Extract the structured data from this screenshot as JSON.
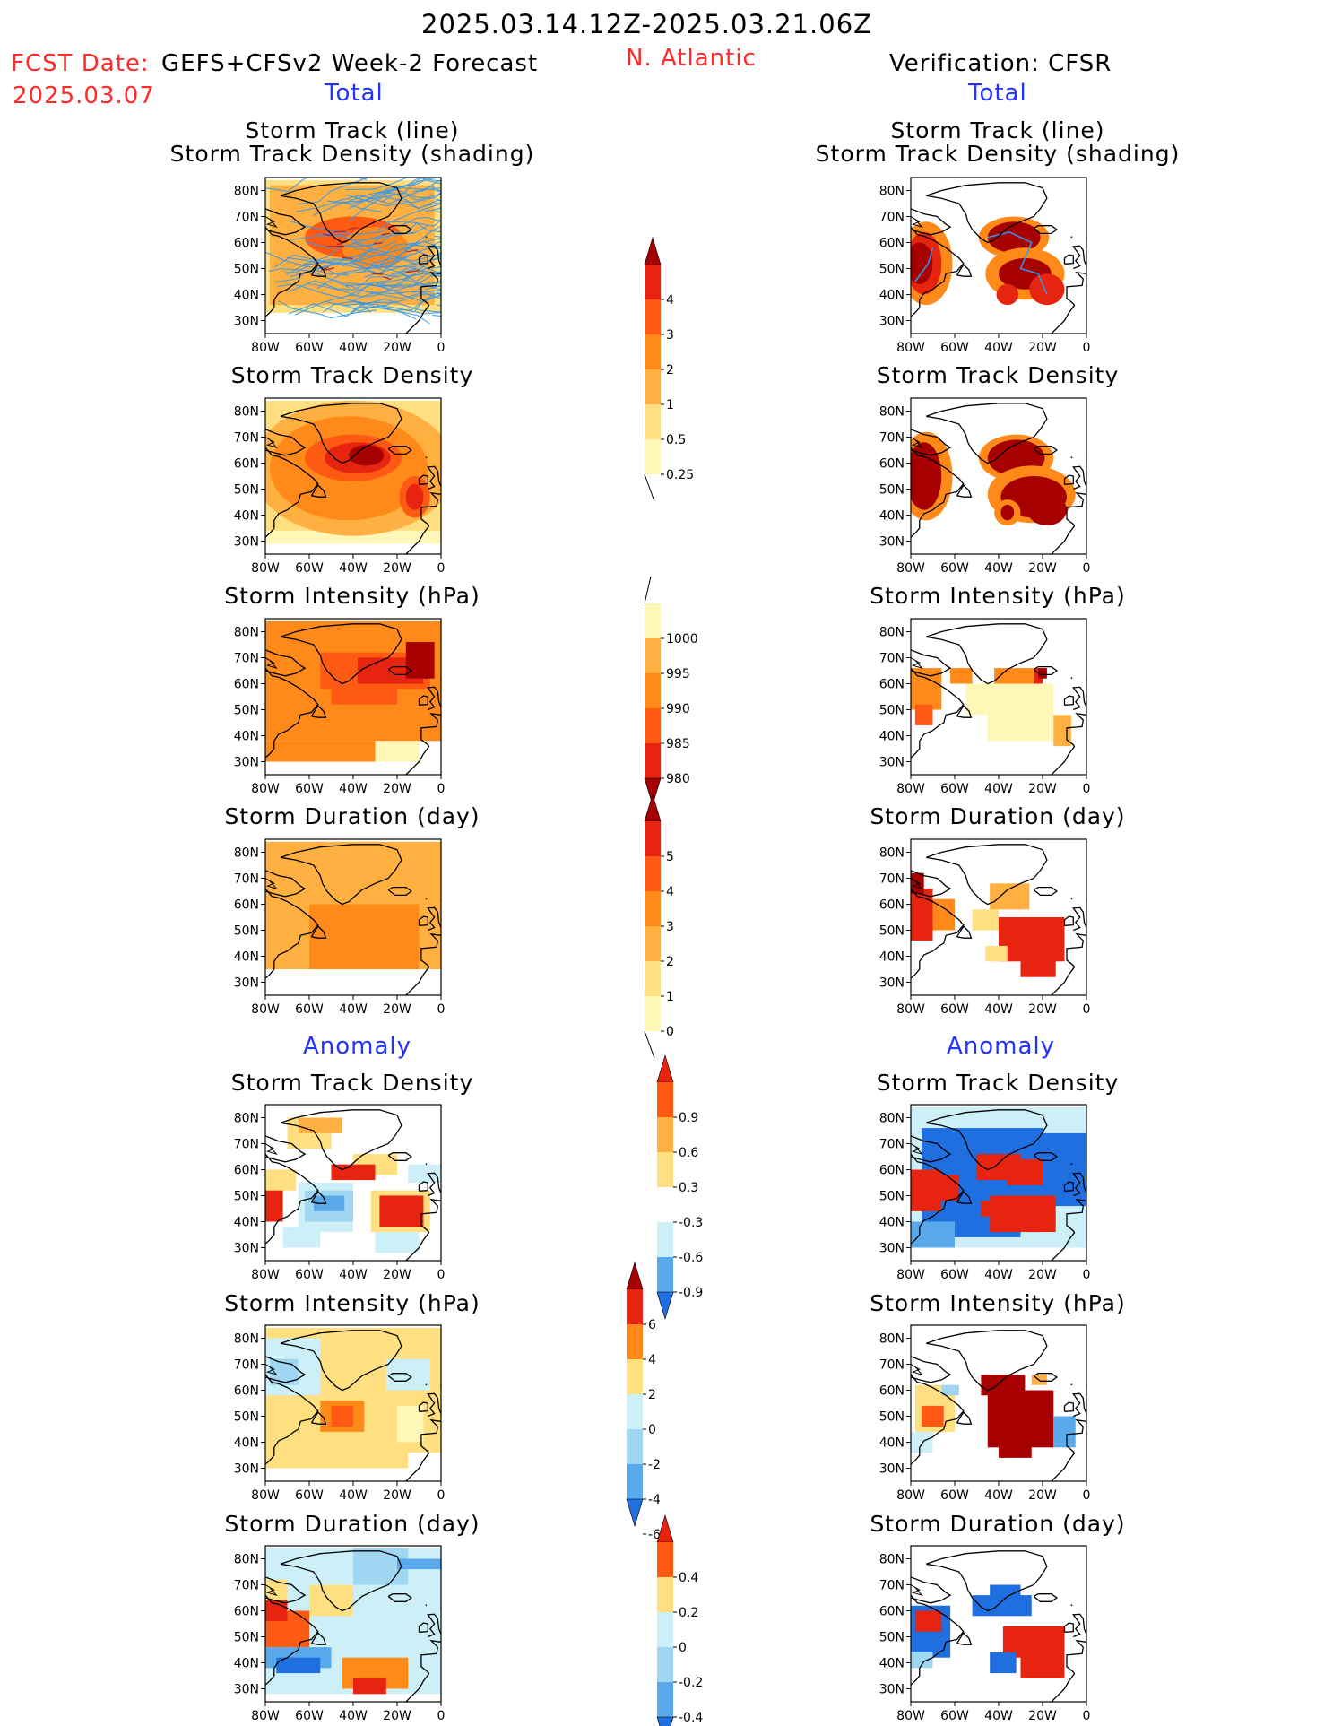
{
  "header": {
    "date_range": "2025.03.14.12Z-2025.03.21.06Z",
    "fcst_label": "FCST Date:",
    "fcst_model": "GEFS+CFSv2 Week-2 Forecast",
    "fcst_date": "2025.03.07",
    "region": "N. Atlantic",
    "verification": "Verification: CFSR",
    "left_section": "Total",
    "right_section": "Total",
    "left_anomaly": "Anomaly",
    "right_anomaly": "Anomaly"
  },
  "panel_titles": {
    "track_line": "Storm Track (line)",
    "track_shading": "Storm Track Density (shading)",
    "density": "Storm Track Density",
    "intensity": "Storm Intensity (hPa)",
    "duration": "Storm Duration (day)"
  },
  "axes": {
    "lat_labels": [
      "80N",
      "70N",
      "60N",
      "50N",
      "40N",
      "30N"
    ],
    "lon_labels": [
      "80W",
      "60W",
      "40W",
      "20W",
      "0"
    ]
  },
  "colorbars": {
    "total_density": [
      "4",
      "3",
      "2",
      "1",
      "0.5",
      "0.25"
    ],
    "total_intensity": [
      "1000",
      "995",
      "990",
      "985",
      "980"
    ],
    "total_duration": [
      "5",
      "4",
      "3",
      "2",
      "1",
      "0"
    ],
    "anom_density": [
      "0.9",
      "0.6",
      "0.3",
      "-0.3",
      "-0.6",
      "-0.9"
    ],
    "anom_intensity": [
      "6",
      "4",
      "2",
      "0",
      "-2",
      "-4",
      "-6"
    ],
    "anom_duration": [
      "0.4",
      "0.2",
      "0",
      "-0.2",
      "-0.4"
    ]
  },
  "colors": {
    "warm": [
      "#fff7b8",
      "#ffdf80",
      "#ffb040",
      "#ff8a1a",
      "#ff5a14",
      "#e62410",
      "#a60000"
    ],
    "cool": [
      "#cdeff8",
      "#9fd6f2",
      "#5aa9ea",
      "#1f6fe0"
    ],
    "track_line": "#3399ee"
  }
}
